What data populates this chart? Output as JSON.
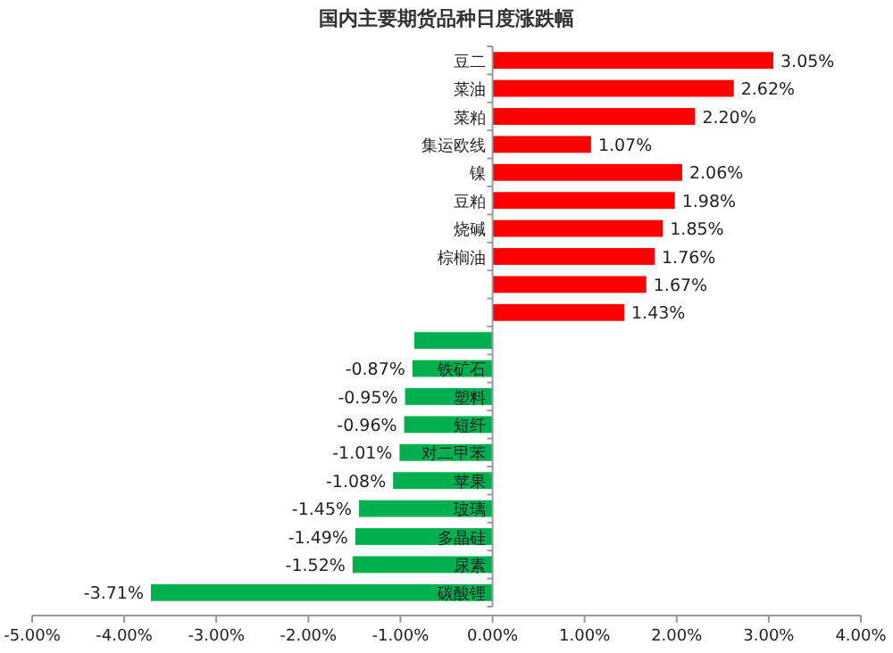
{
  "chart_data": {
    "type": "bar",
    "orientation": "horizontal",
    "title": "国内主要期货品种日度涨跌幅",
    "categories": [
      "豆二",
      "菜油",
      "菜粕",
      "集运欧线",
      "镍",
      "豆粕",
      "烧碱",
      "棕榈油",
      null,
      null,
      null,
      "铁矿石",
      "塑料",
      "短纤",
      "对二甲苯",
      "苹果",
      "玻璃",
      "多晶硅",
      "尿素",
      "碳酸锂"
    ],
    "values": [
      3.05,
      2.62,
      2.2,
      1.07,
      2.06,
      1.98,
      1.85,
      1.76,
      1.67,
      1.43,
      -0.85,
      -0.87,
      -0.95,
      -0.96,
      -1.01,
      -1.08,
      -1.45,
      -1.49,
      -1.52,
      -3.71
    ],
    "colors": [
      "#ff0000",
      "#ff0000",
      "#ff0000",
      "#ff0000",
      "#ff0000",
      "#ff0000",
      "#ff0000",
      "#ff0000",
      "#ff0000",
      "#ff0000",
      "#00b050",
      "#00b050",
      "#00b050",
      "#00b050",
      "#00b050",
      "#00b050",
      "#00b050",
      "#00b050",
      "#00b050",
      "#00b050"
    ],
    "value_labels": [
      "3.05%",
      "2.62%",
      "2.20%",
      "1.07%",
      "2.06%",
      "1.98%",
      "1.85%",
      "1.76%",
      "1.67%",
      "1.43%",
      null,
      "-0.87%",
      "-0.95%",
      "-0.96%",
      "-1.01%",
      "-1.08%",
      "-1.45%",
      "-1.49%",
      "-1.52%",
      "-3.71%"
    ],
    "xlim": [
      -5,
      4
    ],
    "xticks": [
      {
        "value": -5,
        "label": "-5.00%"
      },
      {
        "value": -4,
        "label": "-4.00%"
      },
      {
        "value": -3,
        "label": "-3.00%"
      },
      {
        "value": -2,
        "label": "-2.00%"
      },
      {
        "value": -1,
        "label": "-1.00%"
      },
      {
        "value": 0,
        "label": "0.00%"
      },
      {
        "value": 1,
        "label": "1.00%"
      },
      {
        "value": 2,
        "label": "2.00%"
      },
      {
        "value": 3,
        "label": "3.00%"
      },
      {
        "value": 4,
        "label": "4.00%"
      }
    ]
  }
}
